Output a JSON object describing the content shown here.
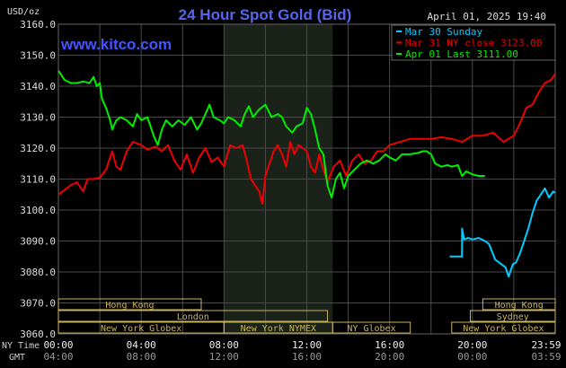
{
  "chart_data": {
    "type": "line",
    "title": "24 Hour Spot Gold (Bid)",
    "watermark": "www.kitco.com",
    "timestamp": "April 01, 2025 19:40",
    "ylabel": "USD/oz",
    "ylim": [
      3060,
      3160
    ],
    "y_ticks": [
      "3160.0",
      "3150.0",
      "3140.0",
      "3130.0",
      "3120.0",
      "3110.0",
      "3100.0",
      "3090.0",
      "3080.0",
      "3070.0",
      "3060.0"
    ],
    "x_ticks_ny": [
      "00:00",
      "04:00",
      "08:00",
      "12:00",
      "16:00",
      "20:00",
      "23:59"
    ],
    "x_ticks_gmt": [
      "04:00",
      "08:00",
      "12:00",
      "16:00",
      "20:00",
      "00:00",
      "03:59"
    ],
    "x_axis_labels": {
      "ny": "NY Time",
      "gmt": "GMT"
    },
    "grid": true,
    "colors": {
      "background": "#000000",
      "grid": "#4a4a4a",
      "title": "#5566ee",
      "watermark": "#4455ff",
      "nymex_shade": "#1a221a",
      "sunday": "#00ccff",
      "close": "#ee0000",
      "last": "#00ee00",
      "session_box": "#c8b45a"
    },
    "legend": {
      "position": "top-right"
    },
    "series": [
      {
        "name": "Mar 30 Sunday",
        "color": "#00ccff",
        "points": [
          [
            18.9,
            3085
          ],
          [
            19.5,
            3085
          ],
          [
            19.5,
            3094
          ],
          [
            19.6,
            3090.5
          ],
          [
            19.8,
            3091
          ],
          [
            20.0,
            3090.5
          ],
          [
            20.3,
            3091
          ],
          [
            20.6,
            3090
          ],
          [
            20.8,
            3089
          ],
          [
            21.1,
            3084
          ],
          [
            21.4,
            3082.5
          ],
          [
            21.6,
            3081.5
          ],
          [
            21.75,
            3078.5
          ],
          [
            21.95,
            3082.5
          ],
          [
            22.1,
            3083
          ],
          [
            22.3,
            3086
          ],
          [
            22.5,
            3090
          ],
          [
            22.7,
            3094
          ],
          [
            22.9,
            3099
          ],
          [
            23.1,
            3103
          ],
          [
            23.3,
            3105
          ],
          [
            23.5,
            3107
          ],
          [
            23.7,
            3104
          ],
          [
            23.9,
            3106
          ],
          [
            24.0,
            3105.5
          ]
        ]
      },
      {
        "name": "Mar 31 NY close 3123.00",
        "color": "#ee0000",
        "points": [
          [
            0.0,
            3105
          ],
          [
            0.3,
            3106.5
          ],
          [
            0.6,
            3108
          ],
          [
            0.9,
            3109
          ],
          [
            1.2,
            3106
          ],
          [
            1.4,
            3110
          ],
          [
            1.7,
            3110
          ],
          [
            2.0,
            3110.5
          ],
          [
            2.3,
            3113
          ],
          [
            2.6,
            3119
          ],
          [
            2.8,
            3114
          ],
          [
            3.0,
            3113
          ],
          [
            3.3,
            3119
          ],
          [
            3.6,
            3122
          ],
          [
            4.0,
            3121
          ],
          [
            4.3,
            3119.5
          ],
          [
            4.7,
            3120.5
          ],
          [
            5.0,
            3119
          ],
          [
            5.3,
            3121
          ],
          [
            5.6,
            3116
          ],
          [
            5.9,
            3113
          ],
          [
            6.2,
            3118
          ],
          [
            6.5,
            3112
          ],
          [
            6.8,
            3117
          ],
          [
            7.1,
            3120
          ],
          [
            7.4,
            3115.5
          ],
          [
            7.7,
            3117
          ],
          [
            8.0,
            3114
          ],
          [
            8.3,
            3121
          ],
          [
            8.6,
            3120
          ],
          [
            8.9,
            3121
          ],
          [
            9.1,
            3116
          ],
          [
            9.3,
            3110
          ],
          [
            9.5,
            3108
          ],
          [
            9.7,
            3106
          ],
          [
            9.85,
            3102
          ],
          [
            10.0,
            3111
          ],
          [
            10.2,
            3115
          ],
          [
            10.4,
            3119
          ],
          [
            10.6,
            3121
          ],
          [
            10.8,
            3118
          ],
          [
            11.0,
            3114
          ],
          [
            11.2,
            3122
          ],
          [
            11.4,
            3118
          ],
          [
            11.6,
            3121
          ],
          [
            11.8,
            3120
          ],
          [
            12.0,
            3119
          ],
          [
            12.2,
            3114
          ],
          [
            12.4,
            3112
          ],
          [
            12.6,
            3118
          ],
          [
            12.8,
            3113
          ],
          [
            13.0,
            3109
          ],
          [
            13.3,
            3114
          ],
          [
            13.6,
            3116
          ],
          [
            13.9,
            3111
          ],
          [
            14.2,
            3116
          ],
          [
            14.5,
            3118
          ],
          [
            14.8,
            3115
          ],
          [
            15.1,
            3116
          ],
          [
            15.4,
            3119
          ],
          [
            15.7,
            3119
          ],
          [
            16.0,
            3121
          ],
          [
            16.5,
            3122
          ],
          [
            17.0,
            3123
          ],
          [
            17.5,
            3123
          ],
          [
            18.0,
            3123
          ],
          [
            18.5,
            3123.5
          ],
          [
            19.0,
            3123
          ],
          [
            19.5,
            3122
          ],
          [
            20.0,
            3124
          ],
          [
            20.5,
            3124
          ],
          [
            21.0,
            3125
          ],
          [
            21.5,
            3122
          ],
          [
            22.0,
            3124
          ],
          [
            22.3,
            3128
          ],
          [
            22.6,
            3133
          ],
          [
            22.9,
            3134
          ],
          [
            23.2,
            3138
          ],
          [
            23.5,
            3141
          ],
          [
            23.8,
            3142
          ],
          [
            24.0,
            3144
          ]
        ]
      },
      {
        "name": "Apr 01 Last 3111.00",
        "color": "#00ee00",
        "points": [
          [
            0.0,
            3145
          ],
          [
            0.3,
            3142
          ],
          [
            0.6,
            3141
          ],
          [
            0.9,
            3141
          ],
          [
            1.2,
            3141.5
          ],
          [
            1.5,
            3141
          ],
          [
            1.7,
            3143
          ],
          [
            1.85,
            3140
          ],
          [
            2.0,
            3141
          ],
          [
            2.1,
            3136
          ],
          [
            2.3,
            3133
          ],
          [
            2.5,
            3129
          ],
          [
            2.6,
            3126
          ],
          [
            2.8,
            3129
          ],
          [
            3.0,
            3130
          ],
          [
            3.3,
            3129
          ],
          [
            3.6,
            3127
          ],
          [
            3.8,
            3131
          ],
          [
            4.0,
            3129
          ],
          [
            4.3,
            3130
          ],
          [
            4.6,
            3124
          ],
          [
            4.8,
            3121
          ],
          [
            5.0,
            3126
          ],
          [
            5.2,
            3129
          ],
          [
            5.5,
            3127
          ],
          [
            5.8,
            3129
          ],
          [
            6.1,
            3127.5
          ],
          [
            6.4,
            3130
          ],
          [
            6.7,
            3126
          ],
          [
            6.9,
            3128
          ],
          [
            7.1,
            3131
          ],
          [
            7.3,
            3134
          ],
          [
            7.5,
            3130
          ],
          [
            7.8,
            3129
          ],
          [
            8.0,
            3128
          ],
          [
            8.2,
            3130
          ],
          [
            8.5,
            3129
          ],
          [
            8.8,
            3127
          ],
          [
            9.0,
            3131
          ],
          [
            9.2,
            3133.5
          ],
          [
            9.4,
            3130
          ],
          [
            9.7,
            3132.5
          ],
          [
            10.0,
            3134
          ],
          [
            10.3,
            3130
          ],
          [
            10.6,
            3131
          ],
          [
            10.8,
            3130
          ],
          [
            11.0,
            3127
          ],
          [
            11.3,
            3125
          ],
          [
            11.5,
            3127
          ],
          [
            11.8,
            3128
          ],
          [
            12.0,
            3133
          ],
          [
            12.2,
            3131
          ],
          [
            12.4,
            3126
          ],
          [
            12.6,
            3120
          ],
          [
            12.8,
            3118
          ],
          [
            13.0,
            3108
          ],
          [
            13.2,
            3104
          ],
          [
            13.4,
            3110
          ],
          [
            13.6,
            3112
          ],
          [
            13.8,
            3107
          ],
          [
            14.0,
            3111
          ],
          [
            14.3,
            3113
          ],
          [
            14.6,
            3115
          ],
          [
            14.9,
            3116
          ],
          [
            15.2,
            3115
          ],
          [
            15.5,
            3116
          ],
          [
            15.8,
            3118
          ],
          [
            16.0,
            3117
          ],
          [
            16.3,
            3116
          ],
          [
            16.6,
            3118
          ],
          [
            17.0,
            3118
          ],
          [
            17.4,
            3118.5
          ],
          [
            17.6,
            3119
          ],
          [
            17.8,
            3119
          ],
          [
            18.0,
            3118
          ],
          [
            18.2,
            3115
          ],
          [
            18.5,
            3114
          ],
          [
            18.8,
            3114.5
          ],
          [
            19.0,
            3114
          ],
          [
            19.3,
            3114.5
          ],
          [
            19.5,
            3111
          ],
          [
            19.7,
            3112.5
          ],
          [
            20.0,
            3111.5
          ],
          [
            20.3,
            3111
          ],
          [
            20.6,
            3111
          ]
        ]
      }
    ],
    "shaded_regions": [
      {
        "name": "NY NYMEX",
        "x": [
          8.0,
          13.25
        ]
      }
    ],
    "sessions": [
      {
        "label": "Hong Kong",
        "x": [
          0.0,
          6.9
        ]
      },
      {
        "label": "Hong Kong",
        "x": [
          20.5,
          24.0
        ]
      },
      {
        "label": "London",
        "x": [
          0.0,
          13.0
        ]
      },
      {
        "label": "Sydney",
        "x": [
          19.9,
          24.0
        ]
      },
      {
        "label": "New York Globex",
        "x": [
          0.0,
          8.0
        ]
      },
      {
        "label": "New York NYMEX",
        "x": [
          8.0,
          13.25
        ]
      },
      {
        "label": "NY Globex",
        "x": [
          13.25,
          17.0
        ]
      },
      {
        "label": "New York Globex",
        "x": [
          19.0,
          24.0
        ]
      }
    ]
  }
}
